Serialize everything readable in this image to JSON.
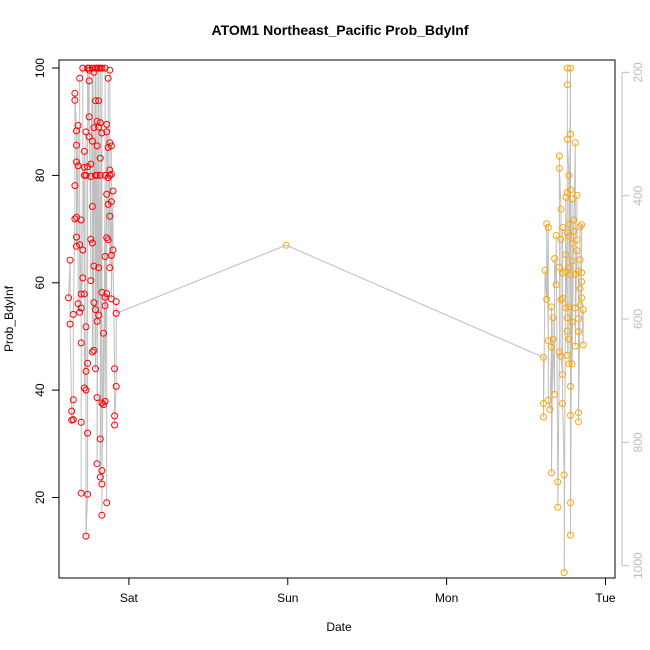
{
  "chart_data": {
    "type": "scatter",
    "title": "ATOM1 Northeast_Pacific Prob_BdyInf",
    "xlabel": "Date",
    "ylabel": "Prob_BdyInf",
    "x_ticks": [
      "Sat",
      "Sun",
      "Mon",
      "Tue"
    ],
    "y_ticks": [
      20,
      40,
      60,
      80,
      100
    ],
    "y2_ticks": [
      200,
      400,
      600,
      800,
      1000
    ],
    "xlim_days": [
      -0.44,
      3.06
    ],
    "ylim": [
      5,
      101.5
    ],
    "y2lim": [
      1020,
      180
    ],
    "colors": {
      "series_red": "#ff0000",
      "series_orange": "#ffa500",
      "line": "#bebebe",
      "axis": "#000000",
      "right_axis": "#bebebe"
    },
    "series": [
      {
        "color": "#ff0000",
        "points": [
          [
            -0.38,
            57.2
          ],
          [
            -0.37,
            64.2
          ],
          [
            -0.37,
            52.3
          ],
          [
            -0.36,
            36.1
          ],
          [
            -0.36,
            34.4
          ],
          [
            -0.35,
            34.5
          ],
          [
            -0.35,
            38.2
          ],
          [
            -0.35,
            54.1
          ],
          [
            -0.34,
            71.9
          ],
          [
            -0.34,
            78.1
          ],
          [
            -0.34,
            94.0
          ],
          [
            -0.34,
            95.3
          ],
          [
            -0.33,
            88.3
          ],
          [
            -0.33,
            85.6
          ],
          [
            -0.33,
            82.5
          ],
          [
            -0.33,
            72.2
          ],
          [
            -0.33,
            68.5
          ],
          [
            -0.33,
            66.8
          ],
          [
            -0.32,
            89.3
          ],
          [
            -0.32,
            81.8
          ],
          [
            -0.32,
            56.1
          ],
          [
            -0.31,
            54.5
          ],
          [
            -0.31,
            98.1
          ],
          [
            -0.31,
            67.1
          ],
          [
            -0.3,
            55.3
          ],
          [
            -0.3,
            71.7
          ],
          [
            -0.3,
            48.8
          ],
          [
            -0.3,
            34.0
          ],
          [
            -0.3,
            20.8
          ],
          [
            -0.3,
            57.9
          ],
          [
            -0.29,
            60.9
          ],
          [
            -0.29,
            100.0
          ],
          [
            -0.29,
            66.1
          ],
          [
            -0.28,
            84.5
          ],
          [
            -0.28,
            81.5
          ],
          [
            -0.28,
            80.0
          ],
          [
            -0.28,
            57.9
          ],
          [
            -0.28,
            40.4
          ],
          [
            -0.27,
            51.8
          ],
          [
            -0.27,
            88.1
          ],
          [
            -0.27,
            80.0
          ],
          [
            -0.27,
            43.5
          ],
          [
            -0.27,
            40.0
          ],
          [
            -0.27,
            12.8
          ],
          [
            -0.26,
            20.6
          ],
          [
            -0.26,
            45.0
          ],
          [
            -0.26,
            32.0
          ],
          [
            -0.26,
            81.6
          ],
          [
            -0.26,
            100.0
          ],
          [
            -0.25,
            87.2
          ],
          [
            -0.25,
            99.6
          ],
          [
            -0.25,
            97.6
          ],
          [
            -0.25,
            100.0
          ],
          [
            -0.25,
            90.9
          ],
          [
            -0.24,
            68.1
          ],
          [
            -0.24,
            60.4
          ],
          [
            -0.24,
            82.1
          ],
          [
            -0.24,
            79.8
          ],
          [
            -0.23,
            100.0
          ],
          [
            -0.23,
            86.4
          ],
          [
            -0.23,
            74.2
          ],
          [
            -0.23,
            67.4
          ],
          [
            -0.23,
            47.1
          ],
          [
            -0.22,
            88.9
          ],
          [
            -0.22,
            99.2
          ],
          [
            -0.22,
            56.3
          ],
          [
            -0.22,
            47.4
          ],
          [
            -0.22,
            63.1
          ],
          [
            -0.21,
            93.9
          ],
          [
            -0.21,
            80.0
          ],
          [
            -0.21,
            100.0
          ],
          [
            -0.21,
            55.0
          ],
          [
            -0.21,
            44.0
          ],
          [
            -0.2,
            100.0
          ],
          [
            -0.2,
            90.1
          ],
          [
            -0.2,
            85.5
          ],
          [
            -0.2,
            80.0
          ],
          [
            -0.2,
            52.8
          ],
          [
            -0.2,
            38.6
          ],
          [
            -0.2,
            26.3
          ],
          [
            -0.19,
            100.0
          ],
          [
            -0.19,
            93.9
          ],
          [
            -0.19,
            89.0
          ],
          [
            -0.19,
            62.8
          ],
          [
            -0.19,
            54.0
          ],
          [
            -0.18,
            83.2
          ],
          [
            -0.18,
            89.8
          ],
          [
            -0.18,
            80.0
          ],
          [
            -0.18,
            100.0
          ],
          [
            -0.18,
            30.9
          ],
          [
            -0.18,
            23.8
          ],
          [
            -0.17,
            100.0
          ],
          [
            -0.17,
            87.9
          ],
          [
            -0.17,
            58.2
          ],
          [
            -0.17,
            37.6
          ],
          [
            -0.17,
            25.0
          ],
          [
            -0.17,
            16.7
          ],
          [
            -0.17,
            22.5
          ],
          [
            -0.16,
            50.6
          ],
          [
            -0.16,
            37.3
          ],
          [
            -0.15,
            80.0
          ],
          [
            -0.15,
            55.7
          ],
          [
            -0.15,
            100.0
          ],
          [
            -0.15,
            64.9
          ],
          [
            -0.15,
            57.3
          ],
          [
            -0.15,
            37.9
          ],
          [
            -0.14,
            76.5
          ],
          [
            -0.14,
            68.4
          ],
          [
            -0.14,
            19.0
          ],
          [
            -0.14,
            58.0
          ],
          [
            -0.14,
            88.1
          ],
          [
            -0.14,
            89.5
          ],
          [
            -0.13,
            79.6
          ],
          [
            -0.13,
            85.2
          ],
          [
            -0.13,
            98.1
          ],
          [
            -0.13,
            74.6
          ],
          [
            -0.13,
            68.0
          ],
          [
            -0.12,
            81.0
          ],
          [
            -0.12,
            99.6
          ],
          [
            -0.12,
            86.1
          ],
          [
            -0.12,
            80.0
          ],
          [
            -0.12,
            72.4
          ],
          [
            -0.12,
            62.8
          ],
          [
            -0.11,
            75.1
          ],
          [
            -0.11,
            80.2
          ],
          [
            -0.11,
            85.5
          ],
          [
            -0.11,
            65.1
          ],
          [
            -0.11,
            57.0
          ],
          [
            -0.1,
            77.1
          ],
          [
            -0.1,
            66.1
          ],
          [
            -0.09,
            44.0
          ],
          [
            -0.09,
            35.2
          ],
          [
            -0.09,
            33.5
          ],
          [
            -0.08,
            40.7
          ],
          [
            -0.08,
            56.5
          ],
          [
            -0.08,
            54.3
          ]
        ]
      },
      {
        "color": "#ffa500",
        "points": [
          [
            0.99,
            67.0
          ],
          [
            2.61,
            46.1
          ],
          [
            2.61,
            37.5
          ],
          [
            2.61,
            35.0
          ],
          [
            2.62,
            62.3
          ],
          [
            2.63,
            56.9
          ],
          [
            2.63,
            71.0
          ],
          [
            2.64,
            49.2
          ],
          [
            2.64,
            70.3
          ],
          [
            2.64,
            38.1
          ],
          [
            2.65,
            36.4
          ],
          [
            2.66,
            48.0
          ],
          [
            2.66,
            55.5
          ],
          [
            2.66,
            24.6
          ],
          [
            2.67,
            53.5
          ],
          [
            2.67,
            49.5
          ],
          [
            2.68,
            39.2
          ],
          [
            2.68,
            64.5
          ],
          [
            2.69,
            59.6
          ],
          [
            2.69,
            68.8
          ],
          [
            2.7,
            22.9
          ],
          [
            2.7,
            18.2
          ],
          [
            2.71,
            47.1
          ],
          [
            2.71,
            62.9
          ],
          [
            2.71,
            83.6
          ],
          [
            2.71,
            81.3
          ],
          [
            2.72,
            73.7
          ],
          [
            2.72,
            56.8
          ],
          [
            2.72,
            68.1
          ],
          [
            2.72,
            46.3
          ],
          [
            2.73,
            42.9
          ],
          [
            2.73,
            61.8
          ],
          [
            2.73,
            70.3
          ],
          [
            2.73,
            57.1
          ],
          [
            2.73,
            37.5
          ],
          [
            2.74,
            24.2
          ],
          [
            2.74,
            6.0
          ],
          [
            2.75,
            75.9
          ],
          [
            2.75,
            62.1
          ],
          [
            2.75,
            65.2
          ],
          [
            2.75,
            55.3
          ],
          [
            2.76,
            69.3
          ],
          [
            2.76,
            53.5
          ],
          [
            2.76,
            46.5
          ],
          [
            2.76,
            76.8
          ],
          [
            2.76,
            51.0
          ],
          [
            2.76,
            100.0
          ],
          [
            2.76,
            96.9
          ],
          [
            2.76,
            86.7
          ],
          [
            2.77,
            80.0
          ],
          [
            2.77,
            68.7
          ],
          [
            2.77,
            70.9
          ],
          [
            2.77,
            62.8
          ],
          [
            2.77,
            44.9
          ],
          [
            2.77,
            55.5
          ],
          [
            2.77,
            49.5
          ],
          [
            2.78,
            100.0
          ],
          [
            2.78,
            87.7
          ],
          [
            2.78,
            77.3
          ],
          [
            2.78,
            61.5
          ],
          [
            2.78,
            40.7
          ],
          [
            2.78,
            35.3
          ],
          [
            2.78,
            19.0
          ],
          [
            2.78,
            13.0
          ],
          [
            2.79,
            75.6
          ],
          [
            2.79,
            64.1
          ],
          [
            2.79,
            67.3
          ],
          [
            2.79,
            52.7
          ],
          [
            2.79,
            44.9
          ],
          [
            2.8,
            71.7
          ],
          [
            2.8,
            69.6
          ],
          [
            2.81,
            86.1
          ],
          [
            2.81,
            61.6
          ],
          [
            2.81,
            55.3
          ],
          [
            2.81,
            48.2
          ],
          [
            2.82,
            68.0
          ],
          [
            2.82,
            76.3
          ],
          [
            2.82,
            66.0
          ],
          [
            2.83,
            62.2
          ],
          [
            2.83,
            53.3
          ],
          [
            2.83,
            50.9
          ],
          [
            2.83,
            35.8
          ],
          [
            2.83,
            34.1
          ],
          [
            2.84,
            58.9
          ],
          [
            2.84,
            55.8
          ],
          [
            2.84,
            64.3
          ],
          [
            2.84,
            70.4
          ],
          [
            2.85,
            70.8
          ],
          [
            2.85,
            60.2
          ],
          [
            2.85,
            61.9
          ],
          [
            2.85,
            57.2
          ],
          [
            2.86,
            48.4
          ],
          [
            2.86,
            55.0
          ]
        ]
      }
    ]
  }
}
